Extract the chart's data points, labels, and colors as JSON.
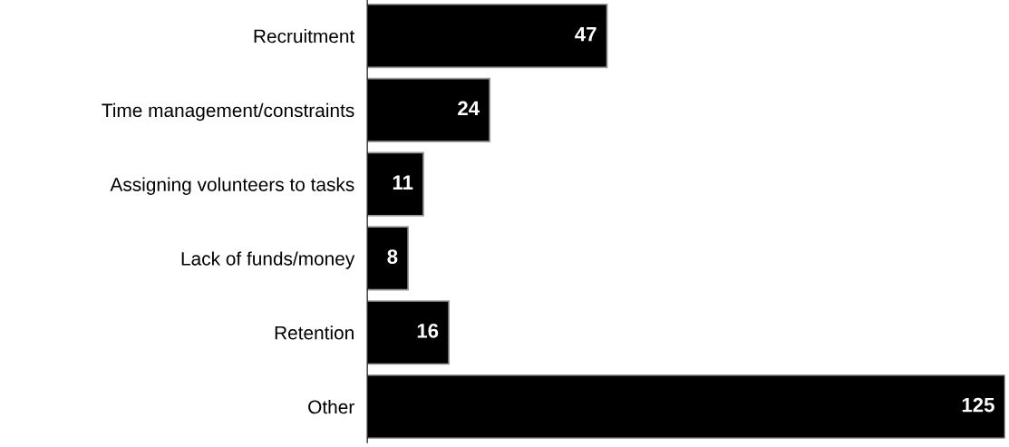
{
  "chart_data": {
    "type": "bar",
    "orientation": "horizontal",
    "categories": [
      "Recruitment",
      "Time management/constraints",
      "Assigning volunteers to tasks",
      "Lack of funds/money",
      "Retention",
      "Other"
    ],
    "values": [
      47,
      24,
      11,
      8,
      16,
      125
    ],
    "color": "#000000",
    "data_labels": true
  }
}
